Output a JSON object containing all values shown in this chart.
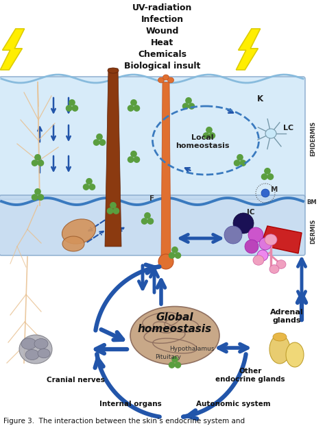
{
  "title_stressors": "UV-radiation\nInfection\nWound\nHeat\nChemicals\nBiological insult",
  "label_epidermis": "EPIDERMIS",
  "label_bm": "BM",
  "label_dermis": "DERMIS",
  "label_K": "K",
  "label_LC": "LC",
  "label_F": "F",
  "label_M": "M",
  "label_IC": "IC",
  "label_local": "Local\nhomeostasis",
  "label_global": "Global\nhomeostasis",
  "label_hypothalamus": "Hypothalamus",
  "label_pituitary": "Pituitary",
  "label_adrenal": "Adrenal\nglands",
  "label_cranial": "Cranial nerves",
  "label_internal": "Internal organs",
  "label_autonomic": "Autonomic system",
  "label_other": "Other\nendocrine glands",
  "caption": "Figure 3.  The interaction between the skin’s endocrine system and",
  "bg_color": "#ffffff",
  "epi_color": "#cce0f0",
  "derm_color": "#b8d4ea",
  "cell_bg": "#ddeeff",
  "bm_line_color": "#3a7abf",
  "arrow_color": "#2255aa",
  "hair_dark": "#8B3A10",
  "hair_light": "#d4874e",
  "green_blob": "#5a9e3f",
  "nerve_color": "#e8c090",
  "brain_color": "#c8a888",
  "kidney_color": "#e8cc70",
  "vessel_red": "#cc2222",
  "lightning_color": "#ffee00",
  "lightning_edge": "#ddcc00",
  "ganglion_color": "#d4935a",
  "lc_body": "#c8e8f8",
  "lc_edge": "#7799aa",
  "gray_ganglion": "#b0b0b8"
}
